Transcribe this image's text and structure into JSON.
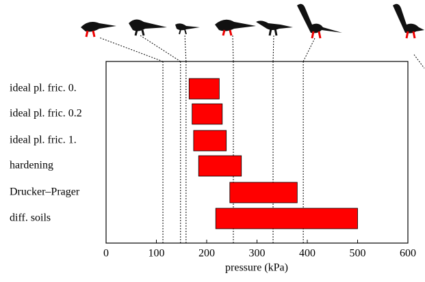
{
  "chart_data": {
    "type": "range_bar",
    "categories": [
      "ideal pl. fric. 0.",
      "ideal pl. fric. 0.2",
      "ideal pl. fric. 1.",
      "hardening",
      "Drucker–Prager",
      "diff. soils"
    ],
    "values": [
      [
        165,
        225
      ],
      [
        171,
        231
      ],
      [
        174,
        239
      ],
      [
        184,
        269
      ],
      [
        246,
        380
      ],
      [
        218,
        500
      ]
    ],
    "color": "#ff0000",
    "reference_lines": [
      113,
      148,
      159,
      253,
      332,
      392
    ],
    "xlabel": "pressure (kPa)",
    "xlim": [
      0,
      600
    ],
    "xticks": [
      0,
      100,
      200,
      300,
      400,
      500,
      600
    ]
  }
}
